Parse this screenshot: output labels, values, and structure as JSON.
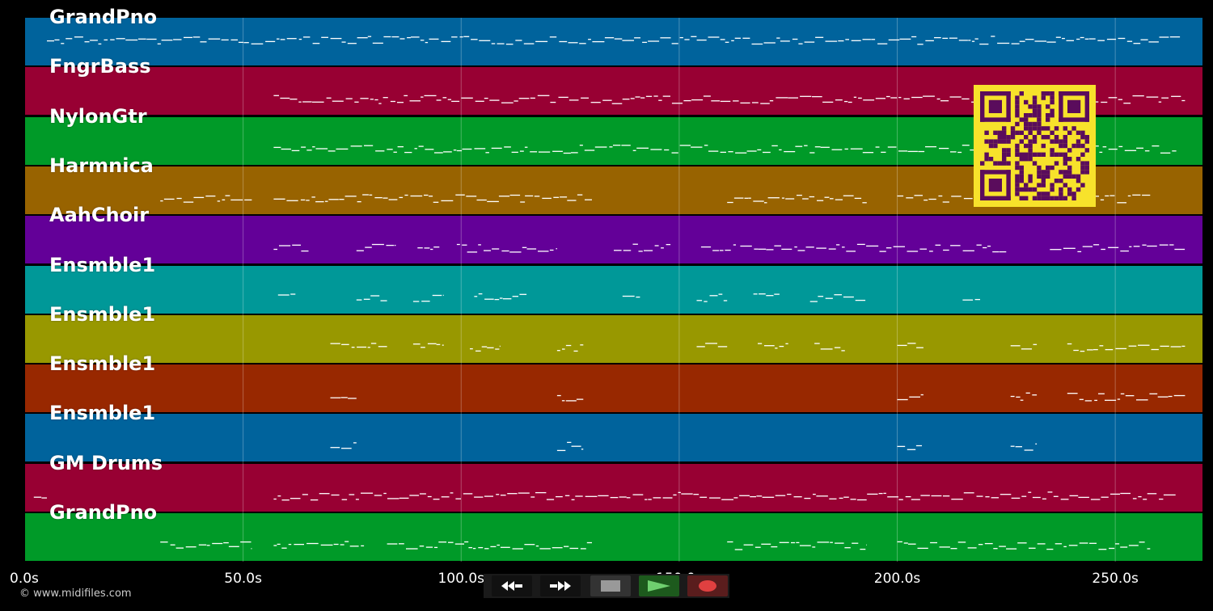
{
  "tracks": [
    {
      "name": "GrandPno",
      "color": "#00639c"
    },
    {
      "name": "FngrBass",
      "color": "#980033"
    },
    {
      "name": "NylonGtr",
      "color": "#009a28"
    },
    {
      "name": "Harmnica",
      "color": "#986300"
    },
    {
      "name": "AahChoir",
      "color": "#630098"
    },
    {
      "name": "Ensmble1",
      "color": "#009898"
    },
    {
      "name": "Ensmble1",
      "color": "#989800"
    },
    {
      "name": "Ensmble1",
      "color": "#982800"
    },
    {
      "name": "Ensmble1",
      "color": "#00639c"
    },
    {
      "name": "GM Drums",
      "color": "#980033"
    },
    {
      "name": "GrandPno",
      "color": "#009a28"
    }
  ],
  "timeline": {
    "ticks": [
      "0.0s",
      "50.0s",
      "100.0s",
      "150.0s",
      "200.0s",
      "250.0s"
    ],
    "tick_seconds": [
      0,
      50,
      100,
      150,
      200,
      250
    ],
    "duration_seconds": 270
  },
  "copyright": "© www.midifiles.com",
  "transport": {
    "buttons": [
      {
        "name": "rewind",
        "icon": "rewind-icon"
      },
      {
        "name": "fast-forward",
        "icon": "fast-forward-icon"
      },
      {
        "name": "stop",
        "icon": "stop-icon"
      },
      {
        "name": "play",
        "icon": "play-icon"
      },
      {
        "name": "record",
        "icon": "record-icon"
      }
    ]
  },
  "qr_code": {
    "icon": "qr-code-icon",
    "color": "#5a0c5c",
    "background": "#f7e22b"
  }
}
